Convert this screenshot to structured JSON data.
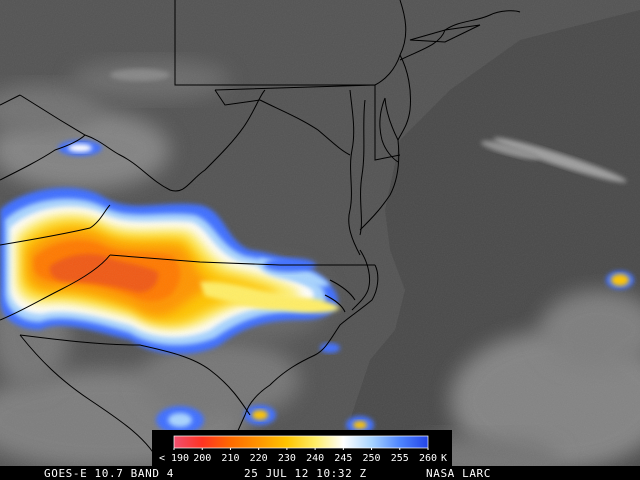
{
  "caption": {
    "product": "GOES-E 10.7 BAND 4",
    "datetime": "25 JUL 12 10:32 Z",
    "source": "NASA LARC"
  },
  "colorbar": {
    "tick_labels": [
      "< 190",
      "200",
      "210",
      "220",
      "230",
      "240",
      "245",
      "250",
      "255",
      "260",
      "K"
    ],
    "stops": [
      {
        "value": 190,
        "color": "#f05070"
      },
      {
        "value": 200,
        "color": "#ff3322"
      },
      {
        "value": 210,
        "color": "#ff6a00"
      },
      {
        "value": 220,
        "color": "#ff9500"
      },
      {
        "value": 230,
        "color": "#ffc400"
      },
      {
        "value": 240,
        "color": "#ffee66"
      },
      {
        "value": 245,
        "color": "#ffffff"
      },
      {
        "value": 250,
        "color": "#a8d4ff"
      },
      {
        "value": 255,
        "color": "#4f86ff"
      },
      {
        "value": 260,
        "color": "#2345e8"
      }
    ]
  },
  "map": {
    "background_color": "#545454",
    "ocean_color": "#4a4a4a",
    "border_color": "#000000",
    "storm_colors": {
      "cold_core": "#f05a14",
      "very_cold": "#ff7a00",
      "cold": "#ff9500",
      "mid": "#ffc400",
      "warm": "#ffee66",
      "edge": "#ffffff",
      "halo": "#a8d4ff",
      "outer": "#3f6fff"
    }
  }
}
